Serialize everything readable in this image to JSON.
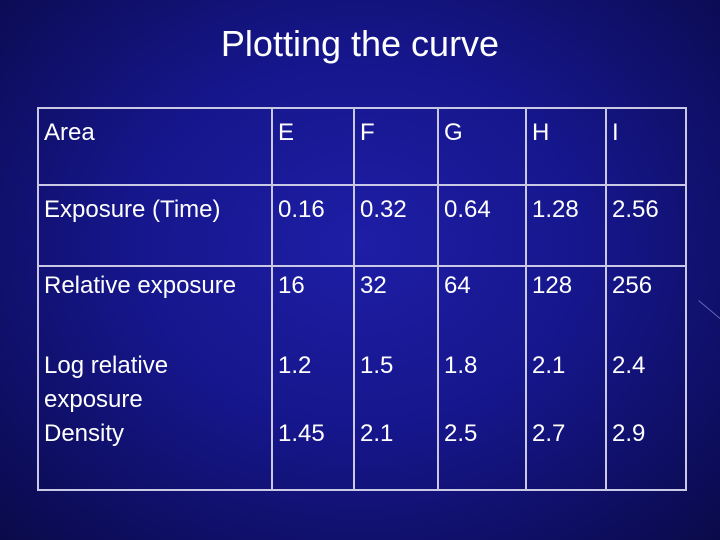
{
  "slide": {
    "title": "Plotting the curve"
  },
  "table": {
    "header": [
      "Area",
      "E",
      "F",
      "G",
      "H",
      "I"
    ],
    "rows": [
      [
        "Exposure (Time)",
        "0.16",
        "0.32",
        "0.64",
        "1.28",
        "2.56"
      ],
      [
        "Relative exposure",
        "16",
        "32",
        "64",
        "128",
        "256"
      ],
      [
        "Log relative exposure",
        "1.2",
        "1.5",
        "1.8",
        "2.1",
        "2.4"
      ],
      [
        "Density",
        "1.45",
        "2.1",
        "2.5",
        "2.7",
        "2.9"
      ]
    ]
  },
  "colors": {
    "background": "#16168c",
    "text": "#ffffff",
    "grid": "#c9c9e6"
  }
}
